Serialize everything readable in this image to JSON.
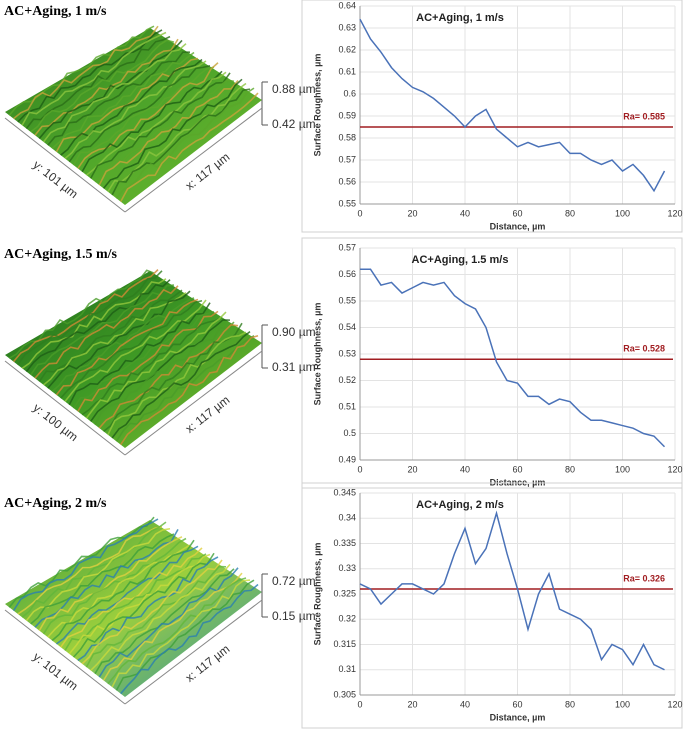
{
  "chart_data": [
    {
      "type": "line",
      "title": "AC+Aging, 1 m/s",
      "x_label": "Distance, µm",
      "y_label": "Surface Roughness, µm",
      "x": [
        0,
        4,
        8,
        12,
        16,
        20,
        24,
        28,
        32,
        36,
        40,
        44,
        48,
        52,
        56,
        60,
        64,
        68,
        72,
        76,
        80,
        84,
        88,
        92,
        96,
        100,
        104,
        108,
        112,
        116
      ],
      "values": [
        0.634,
        0.625,
        0.619,
        0.612,
        0.607,
        0.603,
        0.601,
        0.598,
        0.594,
        0.59,
        0.585,
        0.59,
        0.593,
        0.584,
        0.58,
        0.576,
        0.578,
        0.576,
        0.577,
        0.578,
        0.573,
        0.573,
        0.57,
        0.568,
        0.57,
        0.565,
        0.568,
        0.563,
        0.556,
        0.565
      ],
      "color": "#4a72b8",
      "xlim": [
        0,
        120
      ],
      "xticks": [
        0,
        20,
        40,
        60,
        80,
        100,
        120
      ],
      "ylim": [
        0.55,
        0.64
      ],
      "yticks": [
        0.55,
        0.56,
        0.57,
        0.58,
        0.59,
        0.6,
        0.61,
        0.62,
        0.63,
        0.64
      ],
      "grid": true,
      "reference_line": {
        "value": 0.585,
        "label": "Ra= 0.585",
        "color": "#a11d21"
      }
    },
    {
      "type": "line",
      "title": "AC+Aging, 1.5 m/s",
      "x_label": "Distance, µm",
      "y_label": "Surface Roughness, µm",
      "x": [
        0,
        4,
        8,
        12,
        16,
        20,
        24,
        28,
        32,
        36,
        40,
        44,
        48,
        52,
        56,
        60,
        64,
        68,
        72,
        76,
        80,
        84,
        88,
        92,
        96,
        100,
        104,
        108,
        112,
        116
      ],
      "values": [
        0.562,
        0.562,
        0.556,
        0.557,
        0.553,
        0.555,
        0.557,
        0.556,
        0.557,
        0.552,
        0.549,
        0.547,
        0.54,
        0.527,
        0.52,
        0.519,
        0.514,
        0.514,
        0.511,
        0.513,
        0.512,
        0.508,
        0.505,
        0.505,
        0.504,
        0.503,
        0.502,
        0.5,
        0.499,
        0.495
      ],
      "color": "#4a72b8",
      "xlim": [
        0,
        120
      ],
      "xticks": [
        0,
        20,
        40,
        60,
        80,
        100,
        120
      ],
      "ylim": [
        0.49,
        0.57
      ],
      "yticks": [
        0.49,
        0.5,
        0.51,
        0.52,
        0.53,
        0.54,
        0.55,
        0.56,
        0.57
      ],
      "grid": true,
      "reference_line": {
        "value": 0.528,
        "label": "Ra= 0.528",
        "color": "#a11d21"
      }
    },
    {
      "type": "line",
      "title": "AC+Aging, 2 m/s",
      "x_label": "Distance, µm",
      "y_label": "Surface Roughness, µm",
      "x": [
        0,
        4,
        8,
        12,
        16,
        20,
        24,
        28,
        32,
        36,
        40,
        44,
        48,
        52,
        56,
        60,
        64,
        68,
        72,
        76,
        80,
        84,
        88,
        92,
        96,
        100,
        104,
        108,
        112,
        116
      ],
      "values": [
        0.327,
        0.326,
        0.323,
        0.325,
        0.327,
        0.327,
        0.326,
        0.325,
        0.327,
        0.333,
        0.338,
        0.331,
        0.334,
        0.341,
        0.333,
        0.326,
        0.318,
        0.325,
        0.329,
        0.322,
        0.321,
        0.32,
        0.318,
        0.312,
        0.315,
        0.314,
        0.311,
        0.315,
        0.311,
        0.31
      ],
      "color": "#4a72b8",
      "xlim": [
        0,
        120
      ],
      "xticks": [
        0,
        20,
        40,
        60,
        80,
        100,
        120
      ],
      "ylim": [
        0.305,
        0.345
      ],
      "yticks": [
        0.305,
        0.31,
        0.315,
        0.32,
        0.325,
        0.33,
        0.335,
        0.34,
        0.345
      ],
      "grid": true,
      "reference_line": {
        "value": 0.326,
        "label": "Ra= 0.326",
        "color": "#a11d21"
      }
    }
  ],
  "surfaces": [
    {
      "title": "AC+Aging, 1 m/s",
      "z_max": "0.88 µm",
      "z_min": "0.42 µm",
      "y_extent": "y: 101 µm",
      "x_extent": "x: 117 µm"
    },
    {
      "title": "AC+Aging, 1.5 m/s",
      "z_max": "0.90 µm",
      "z_min": "0.31 µm",
      "y_extent": "y: 100 µm",
      "x_extent": "x: 117 µm"
    },
    {
      "title": "AC+Aging, 2 m/s",
      "z_max": "0.72 µm",
      "z_min": "0.15 µm",
      "y_extent": "y: 101 µm",
      "x_extent": "x: 117 µm"
    }
  ]
}
